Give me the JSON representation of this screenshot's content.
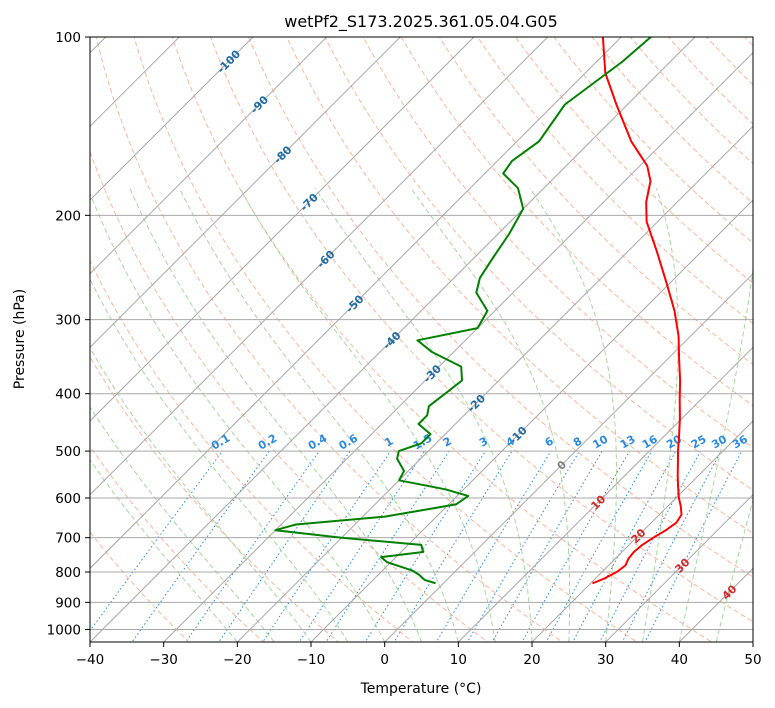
{
  "chart_data": {
    "type": "line",
    "title": "wetPf2_S173.2025.361.05.04.G05",
    "xlabel": "Temperature (°C)",
    "ylabel": "Pressure (hPa)",
    "xlim": [
      -40,
      50
    ],
    "ylim": [
      1050,
      100
    ],
    "y_scale": "log",
    "skew": "skew-T log-p",
    "grid": true,
    "x_ticks": [
      -40,
      -30,
      -20,
      -10,
      0,
      10,
      20,
      30,
      40,
      50
    ],
    "y_ticks": [
      100,
      200,
      300,
      400,
      500,
      600,
      700,
      800,
      900,
      1000
    ],
    "series": [
      {
        "color": "#ff0000",
        "role": "temperature",
        "points": [
          {
            "p": 835,
            "t": 20.3
          },
          {
            "p": 820,
            "t": 21.2
          },
          {
            "p": 800,
            "t": 22.0
          },
          {
            "p": 780,
            "t": 22.3
          },
          {
            "p": 760,
            "t": 21.8
          },
          {
            "p": 740,
            "t": 21.6
          },
          {
            "p": 720,
            "t": 21.8
          },
          {
            "p": 700,
            "t": 22.3
          },
          {
            "p": 680,
            "t": 23.0
          },
          {
            "p": 660,
            "t": 23.4
          },
          {
            "p": 640,
            "t": 23.0
          },
          {
            "p": 620,
            "t": 21.8
          },
          {
            "p": 600,
            "t": 20.4
          },
          {
            "p": 575,
            "t": 18.8
          },
          {
            "p": 550,
            "t": 17.2
          },
          {
            "p": 525,
            "t": 15.6
          },
          {
            "p": 500,
            "t": 13.9
          },
          {
            "p": 470,
            "t": 11.9
          },
          {
            "p": 440,
            "t": 9.7
          },
          {
            "p": 410,
            "t": 7.2
          },
          {
            "p": 380,
            "t": 4.6
          },
          {
            "p": 350,
            "t": 1.6
          },
          {
            "p": 320,
            "t": -1.6
          },
          {
            "p": 290,
            "t": -5.6
          },
          {
            "p": 260,
            "t": -10.5
          },
          {
            "p": 230,
            "t": -16.1
          },
          {
            "p": 205,
            "t": -21.5
          },
          {
            "p": 190,
            "t": -24.2
          },
          {
            "p": 175,
            "t": -26.5
          },
          {
            "p": 165,
            "t": -29.0
          },
          {
            "p": 150,
            "t": -34.5
          },
          {
            "p": 130,
            "t": -41.5
          },
          {
            "p": 115,
            "t": -47.3
          },
          {
            "p": 100,
            "t": -52.5
          }
        ]
      },
      {
        "color": "#008000",
        "role": "dewpoint",
        "points": [
          {
            "p": 835,
            "t": -1.2
          },
          {
            "p": 825,
            "t": -3.0
          },
          {
            "p": 808,
            "t": -4.5
          },
          {
            "p": 795,
            "t": -6.0
          },
          {
            "p": 770,
            "t": -10.5
          },
          {
            "p": 755,
            "t": -12.0
          },
          {
            "p": 740,
            "t": -7.0
          },
          {
            "p": 720,
            "t": -8.2
          },
          {
            "p": 700,
            "t": -20.0
          },
          {
            "p": 680,
            "t": -30.0
          },
          {
            "p": 665,
            "t": -28.0
          },
          {
            "p": 645,
            "t": -17.0
          },
          {
            "p": 615,
            "t": -9.0
          },
          {
            "p": 595,
            "t": -8.5
          },
          {
            "p": 580,
            "t": -12.5
          },
          {
            "p": 560,
            "t": -20.0
          },
          {
            "p": 540,
            "t": -20.6
          },
          {
            "p": 515,
            "t": -23.2
          },
          {
            "p": 500,
            "t": -24.0
          },
          {
            "p": 485,
            "t": -22.0
          },
          {
            "p": 468,
            "t": -22.0
          },
          {
            "p": 450,
            "t": -25.0
          },
          {
            "p": 435,
            "t": -25.0
          },
          {
            "p": 420,
            "t": -26.0
          },
          {
            "p": 400,
            "t": -25.5
          },
          {
            "p": 380,
            "t": -25.0
          },
          {
            "p": 360,
            "t": -27.0
          },
          {
            "p": 340,
            "t": -33.0
          },
          {
            "p": 325,
            "t": -36.5
          },
          {
            "p": 310,
            "t": -30.0
          },
          {
            "p": 290,
            "t": -31.0
          },
          {
            "p": 270,
            "t": -35.0
          },
          {
            "p": 255,
            "t": -36.5
          },
          {
            "p": 235,
            "t": -37.5
          },
          {
            "p": 215,
            "t": -38.5
          },
          {
            "p": 195,
            "t": -40.0
          },
          {
            "p": 180,
            "t": -43.5
          },
          {
            "p": 170,
            "t": -47.5
          },
          {
            "p": 162,
            "t": -48.0
          },
          {
            "p": 150,
            "t": -47.0
          },
          {
            "p": 130,
            "t": -48.5
          },
          {
            "p": 110,
            "t": -46.5
          },
          {
            "p": 100,
            "t": -46.0
          }
        ]
      }
    ],
    "dry_adiabat_labels": [
      "-100",
      "-90",
      "-80",
      "-70",
      "-60",
      "-50",
      "-40",
      "-30",
      "-20",
      "-10",
      "0"
    ],
    "moist_adiabat_labels": [
      "10",
      "20",
      "30",
      "40"
    ],
    "mixing_ratio_labels": [
      "0.1",
      "0.2",
      "0.4",
      "0.6",
      "1",
      "1.5",
      "2",
      "3",
      "4",
      "6",
      "8",
      "10",
      "13",
      "16",
      "20",
      "25",
      "30",
      "36"
    ],
    "colors": {
      "temperature": "#ff0000",
      "dewpoint": "#008000",
      "isotherms": "#a8a8a8",
      "dry_adiabats": "#f7b79f",
      "moist_adiabats": "#a8d5a2",
      "mixing_ratio": "#2a8ae0",
      "dry_labels": "#1f6aa5",
      "moist_labels": "#d62728"
    }
  }
}
